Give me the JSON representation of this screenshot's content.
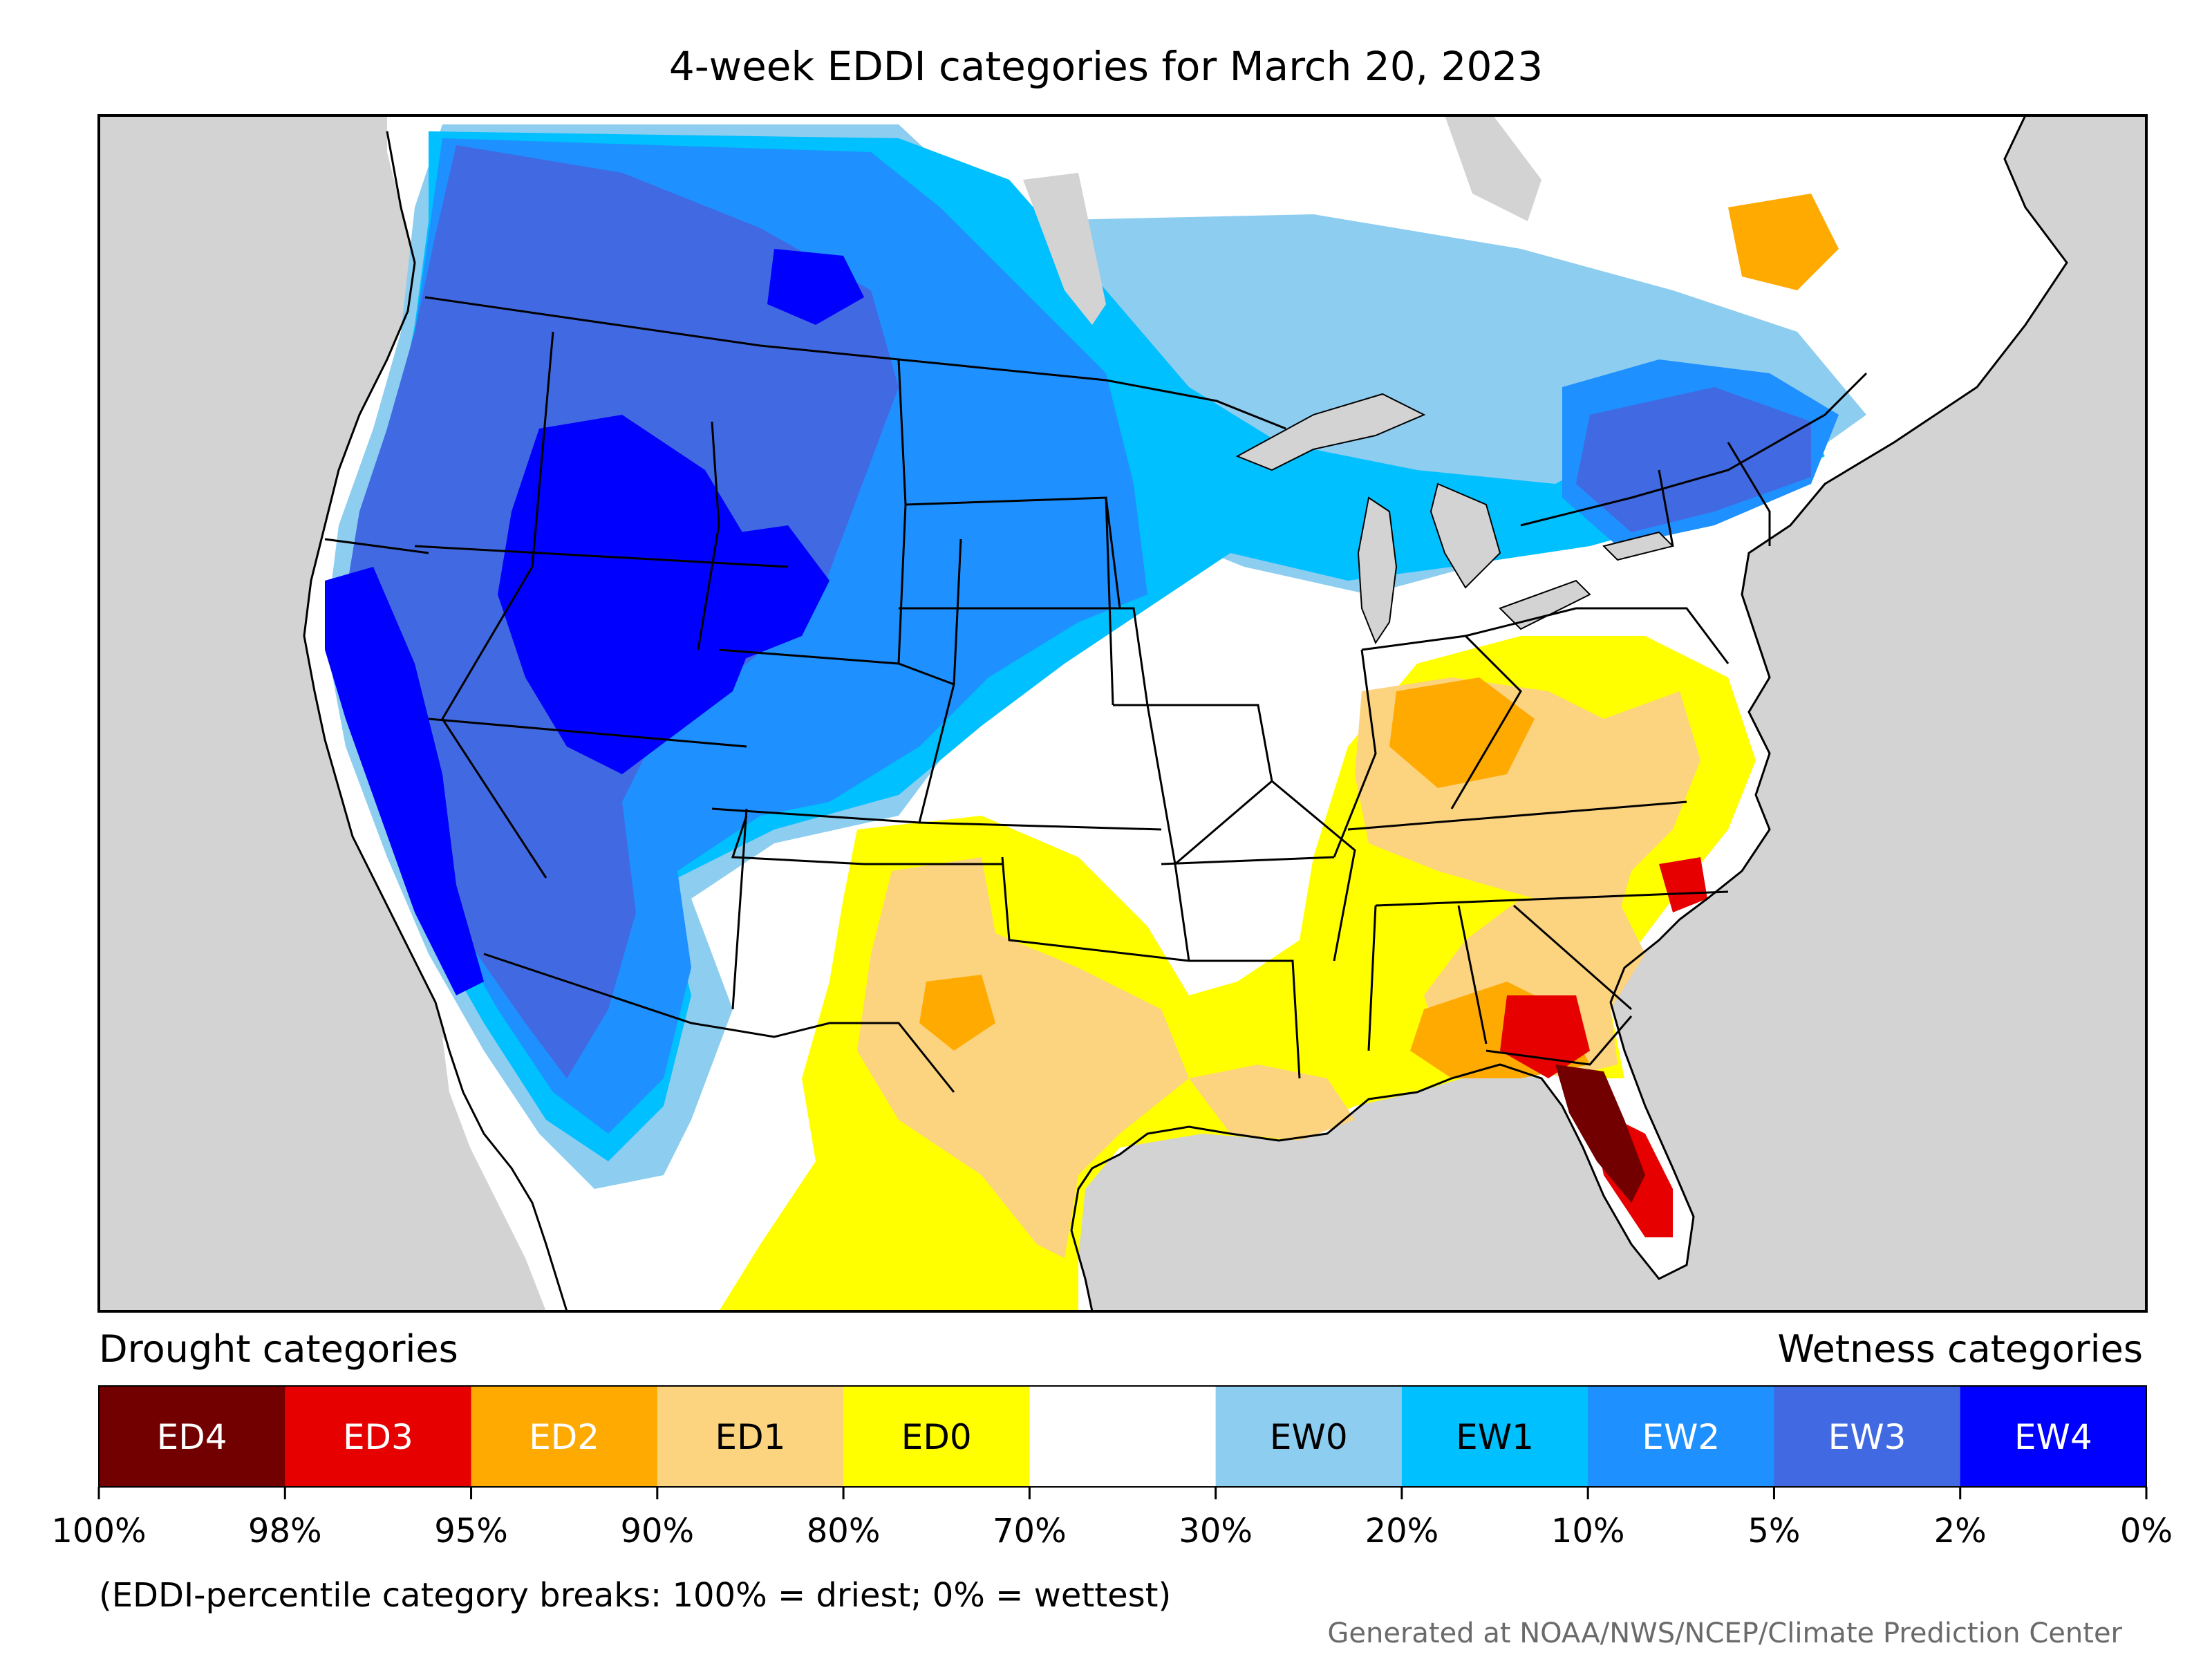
{
  "title": "4-week EDDI categories for March 20, 2023",
  "legend": {
    "drought_heading": "Drought categories",
    "wetness_heading": "Wetness categories",
    "categories": [
      {
        "label": "ED4",
        "color": "#730000",
        "text_color": "#ffffff"
      },
      {
        "label": "ED3",
        "color": "#e60000",
        "text_color": "#ffffff"
      },
      {
        "label": "ED2",
        "color": "#ffaa00",
        "text_color": "#ffffff"
      },
      {
        "label": "ED1",
        "color": "#fcd37f",
        "text_color": "#000000"
      },
      {
        "label": "ED0",
        "color": "#ffff00",
        "text_color": "#000000"
      },
      {
        "label": "",
        "color": "#ffffff",
        "text_color": "#000000"
      },
      {
        "label": "EW0",
        "color": "#8ccdf0",
        "text_color": "#000000"
      },
      {
        "label": "EW1",
        "color": "#00c0ff",
        "text_color": "#000000"
      },
      {
        "label": "EW2",
        "color": "#1e90ff",
        "text_color": "#ffffff"
      },
      {
        "label": "EW3",
        "color": "#4169e1",
        "text_color": "#ffffff"
      },
      {
        "label": "EW4",
        "color": "#0000ff",
        "text_color": "#ffffff"
      }
    ],
    "ticks": [
      "100%",
      "98%",
      "95%",
      "90%",
      "80%",
      "70%",
      "30%",
      "20%",
      "10%",
      "5%",
      "2%",
      "0%"
    ],
    "breaks_note": "(EDDI-percentile category breaks: 100% = driest; 0% = wettest)"
  },
  "credit": "Generated at NOAA/NWS/NCEP/Climate Prediction Center",
  "map": {
    "ocean_color": "#d3d3d3",
    "land_color": "#ffffff",
    "border_color": "#000000"
  }
}
